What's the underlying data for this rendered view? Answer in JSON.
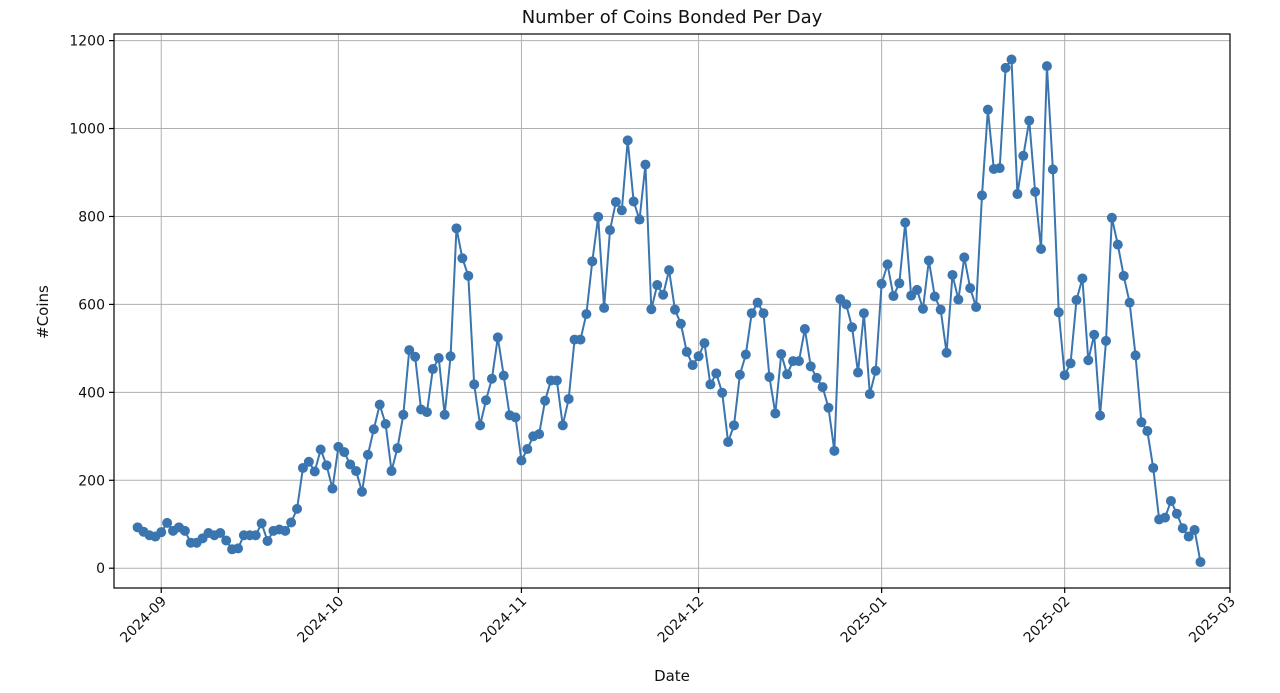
{
  "chart_data": {
    "type": "line",
    "title": "Number of Coins Bonded Per Day",
    "xlabel": "Date",
    "ylabel": "#Coins",
    "x_start": "2024-08-28",
    "x_end": "2025-02-26",
    "xlim": [
      "2024-08-24",
      "2025-03-01"
    ],
    "ylim": [
      -45,
      1215
    ],
    "yticks": [
      0,
      200,
      400,
      600,
      800,
      1000,
      1200
    ],
    "xticks": [
      {
        "date": "2024-09-01",
        "label": "2024-09"
      },
      {
        "date": "2024-10-01",
        "label": "2024-10"
      },
      {
        "date": "2024-11-01",
        "label": "2024-11"
      },
      {
        "date": "2024-12-01",
        "label": "2024-12"
      },
      {
        "date": "2025-01-01",
        "label": "2025-01"
      },
      {
        "date": "2025-02-01",
        "label": "2025-02"
      },
      {
        "date": "2025-03-01",
        "label": "2025-03"
      }
    ],
    "grid": true,
    "marker": "circle",
    "color": "#3b75af",
    "series": [
      {
        "name": "#Coins",
        "values": [
          93,
          83,
          75,
          72,
          82,
          103,
          85,
          93,
          85,
          58,
          58,
          68,
          80,
          75,
          80,
          63,
          43,
          45,
          75,
          75,
          75,
          102,
          62,
          85,
          88,
          85,
          104,
          135,
          228,
          242,
          220,
          270,
          234,
          181,
          276,
          264,
          236,
          221,
          174,
          258,
          316,
          372,
          328,
          221,
          273,
          349,
          496,
          481,
          361,
          355,
          453,
          478,
          349,
          482,
          773,
          705,
          665,
          418,
          325,
          382,
          431,
          525,
          438,
          348,
          343,
          245,
          271,
          300,
          305,
          381,
          427,
          427,
          325,
          385,
          520,
          520,
          578,
          698,
          799,
          592,
          769,
          833,
          814,
          973,
          834,
          793,
          918,
          589,
          644,
          622,
          678,
          588,
          556,
          492,
          462,
          482,
          512,
          418,
          443,
          399,
          287,
          325,
          440,
          486,
          580,
          604,
          580,
          435,
          352,
          487,
          441,
          471,
          471,
          544,
          459,
          433,
          412,
          365,
          267,
          612,
          600,
          548,
          445,
          580,
          396,
          449,
          647,
          691,
          619,
          648,
          786,
          620,
          633,
          590,
          700,
          618,
          588,
          490,
          667,
          611,
          707,
          637,
          594,
          848,
          1043,
          908,
          910,
          1138,
          1157,
          851,
          938,
          1018,
          856,
          726,
          1142,
          907,
          582,
          439,
          466,
          610,
          659,
          473,
          531,
          347,
          517,
          797,
          736,
          665,
          604,
          484,
          332,
          312,
          228,
          111,
          115,
          153,
          124,
          91,
          72,
          87,
          14
        ]
      }
    ]
  }
}
